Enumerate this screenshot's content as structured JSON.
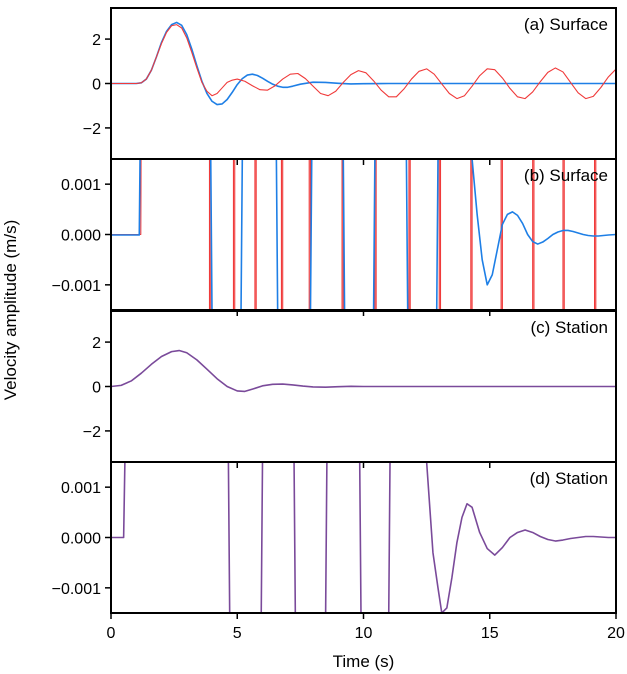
{
  "figure": {
    "xlabel": "Time (s)",
    "ylabel": "Velocity amplitude (m/s)"
  },
  "colors": {
    "blue": "#1E7FE6",
    "red": "#F03A3A",
    "purple": "#7A4A9A",
    "frame": "#000000"
  },
  "chart_data": [
    {
      "type": "line",
      "panel_label": "(a) Surface",
      "xlim": [
        0,
        20
      ],
      "ylim": [
        -3.4,
        3.4
      ],
      "xticks": [
        0,
        5,
        10,
        15,
        20
      ],
      "yticks": [
        -2,
        0,
        2
      ],
      "ytick_labels": [
        "−2",
        "0",
        "2"
      ],
      "series": [
        {
          "color": "blue",
          "x": [
            0,
            1.0,
            1.2,
            1.4,
            1.6,
            1.8,
            2.0,
            2.2,
            2.4,
            2.6,
            2.8,
            3.0,
            3.2,
            3.4,
            3.6,
            3.8,
            4.0,
            4.2,
            4.4,
            4.6,
            4.8,
            5.0,
            5.2,
            5.4,
            5.6,
            5.8,
            6.0,
            6.2,
            6.4,
            6.6,
            6.8,
            7.0,
            7.2,
            7.5,
            8.0,
            8.5,
            9.0,
            9.5,
            10,
            11,
            12,
            13,
            14,
            15,
            16,
            17,
            18,
            19,
            20
          ],
          "y": [
            0,
            0,
            0.03,
            0.2,
            0.6,
            1.2,
            1.85,
            2.35,
            2.65,
            2.75,
            2.62,
            2.2,
            1.55,
            0.8,
            0.1,
            -0.45,
            -0.8,
            -0.95,
            -0.92,
            -0.72,
            -0.4,
            -0.05,
            0.22,
            0.38,
            0.42,
            0.36,
            0.24,
            0.1,
            -0.03,
            -0.12,
            -0.17,
            -0.17,
            -0.12,
            -0.03,
            0.06,
            0.05,
            0.01,
            -0.02,
            -0.01,
            0,
            0,
            0,
            0,
            0,
            0,
            0,
            0,
            0,
            0
          ]
        },
        {
          "color": "red",
          "x": [
            0,
            1.0,
            1.2,
            1.4,
            1.6,
            1.8,
            2.0,
            2.2,
            2.4,
            2.6,
            2.8,
            3.0,
            3.2,
            3.4,
            3.6,
            3.8,
            4.0,
            4.2,
            4.4,
            4.6,
            4.8,
            5.0,
            5.3,
            5.6,
            5.9,
            6.2,
            6.5,
            6.8,
            7.1,
            7.4,
            7.7,
            8.0,
            8.3,
            8.6,
            8.9,
            9.2,
            9.5,
            9.8,
            10.1,
            10.4,
            10.7,
            11.0,
            11.3,
            11.6,
            11.9,
            12.2,
            12.5,
            12.8,
            13.1,
            13.4,
            13.7,
            14.0,
            14.3,
            14.6,
            14.9,
            15.2,
            15.5,
            15.8,
            16.1,
            16.4,
            16.7,
            17.0,
            17.3,
            17.6,
            17.9,
            18.2,
            18.5,
            18.8,
            19.1,
            19.4,
            19.7,
            20.0
          ],
          "y": [
            0,
            0,
            0.03,
            0.2,
            0.6,
            1.2,
            1.8,
            2.3,
            2.6,
            2.65,
            2.5,
            2.05,
            1.4,
            0.7,
            0.05,
            -0.35,
            -0.55,
            -0.45,
            -0.2,
            0.05,
            0.15,
            0.2,
            0.1,
            -0.1,
            -0.28,
            -0.3,
            -0.1,
            0.2,
            0.42,
            0.45,
            0.22,
            -0.12,
            -0.45,
            -0.55,
            -0.35,
            0.05,
            0.4,
            0.58,
            0.48,
            0.12,
            -0.3,
            -0.6,
            -0.6,
            -0.25,
            0.2,
            0.55,
            0.66,
            0.42,
            -0.02,
            -0.45,
            -0.68,
            -0.55,
            -0.12,
            0.35,
            0.66,
            0.62,
            0.25,
            -0.22,
            -0.6,
            -0.68,
            -0.38,
            0.08,
            0.5,
            0.7,
            0.52,
            0.05,
            -0.42,
            -0.68,
            -0.58,
            -0.18,
            0.3,
            0.65
          ]
        }
      ]
    },
    {
      "type": "line",
      "panel_label": "(b) Surface",
      "xlim": [
        0,
        20
      ],
      "ylim": [
        -0.0015,
        0.0015
      ],
      "xticks": [
        0,
        5,
        10,
        15,
        20
      ],
      "yticks": [
        -0.001,
        0,
        0.001
      ],
      "ytick_labels": [
        "−0.001",
        "0.000",
        "0.001"
      ],
      "series": [
        {
          "color": "red",
          "x": [
            0,
            1.18,
            1.19,
            1.19,
            1.2,
            1.2,
            3.9,
            3.9,
            3.95,
            3.95,
            4.85,
            4.85,
            4.9,
            4.9,
            5.7,
            5.7,
            5.75,
            5.75,
            6.75,
            6.75,
            6.8,
            6.8,
            7.85,
            7.85,
            7.9,
            7.9,
            9.15,
            9.15,
            9.2,
            9.2,
            10.45,
            10.45,
            10.5,
            10.5,
            11.8,
            11.8,
            11.85,
            11.85,
            13.0,
            13.0,
            13.05,
            13.05,
            14.25,
            14.25,
            14.3,
            14.3,
            15.45,
            15.45,
            15.5,
            15.5,
            16.7,
            16.7,
            16.75,
            16.75,
            17.9,
            17.9,
            17.95,
            17.95,
            19.15,
            19.15,
            19.2,
            19.2,
            20
          ],
          "y": [
            0,
            0,
            0.0015,
            0.0015,
            0.0015,
            0.0015,
            0.0015,
            -0.0015,
            -0.0015,
            0.0015,
            0.0015,
            -0.0015,
            -0.0015,
            0.0015,
            0.0015,
            -0.0015,
            -0.0015,
            0.0015,
            0.0015,
            -0.0015,
            -0.0015,
            0.0015,
            0.0015,
            -0.0015,
            -0.0015,
            0.0015,
            0.0015,
            -0.0015,
            -0.0015,
            0.0015,
            0.0015,
            -0.0015,
            -0.0015,
            0.0015,
            0.0015,
            -0.0015,
            -0.0015,
            0.0015,
            0.0015,
            -0.0015,
            -0.0015,
            0.0015,
            0.0015,
            -0.0015,
            -0.0015,
            0.0015,
            0.0015,
            -0.0015,
            -0.0015,
            0.0015,
            0.0015,
            -0.0015,
            -0.0015,
            0.0015,
            0.0015,
            -0.0015,
            -0.0015,
            0.0015,
            0.0015,
            -0.0015,
            -0.0015,
            0.0015,
            0.0015
          ]
        },
        {
          "color": "blue",
          "x": [
            0,
            1.12,
            1.15,
            1.17,
            3.95,
            4.0,
            4.05,
            5.15,
            5.2,
            5.25,
            6.55,
            6.6,
            6.65,
            7.9,
            7.95,
            8.0,
            9.2,
            9.25,
            9.3,
            10.4,
            10.45,
            10.5,
            11.7,
            11.75,
            11.8,
            12.9,
            12.95,
            13.0,
            13.35,
            13.6,
            13.85,
            14.1,
            14.3,
            14.5,
            14.7,
            14.9,
            15.1,
            15.3,
            15.5,
            15.7,
            15.9,
            16.1,
            16.3,
            16.5,
            16.7,
            16.9,
            17.1,
            17.3,
            17.5,
            17.7,
            17.9,
            18.1,
            18.3,
            18.5,
            18.7,
            18.9,
            19.1,
            19.3,
            19.5,
            19.7,
            20.0
          ],
          "y": [
            -1e-05,
            -1e-05,
            0.0015,
            0.0015,
            0.0015,
            -0.0015,
            -0.0015,
            -0.0015,
            0.0015,
            0.0015,
            0.0015,
            -0.0015,
            -0.0015,
            -0.0015,
            0.0015,
            0.0015,
            0.0015,
            -0.0015,
            -0.0015,
            -0.0015,
            0.0015,
            0.0015,
            0.0015,
            -0.0015,
            -0.0015,
            -0.0015,
            0.0015,
            0.0015,
            0.0015,
            0.0015,
            0.0015,
            0.0015,
            0.0015,
            0.0004,
            -0.0005,
            -0.001,
            -0.0008,
            -0.0003,
            0.0002,
            0.0004,
            0.00045,
            0.00038,
            0.00022,
            0.0,
            -0.00014,
            -0.00019,
            -0.00015,
            -8e-05,
            0.0,
            5e-05,
            8e-05,
            8e-05,
            6e-05,
            3e-05,
            0.0,
            -2e-05,
            -3e-05,
            -3e-05,
            -2e-05,
            -1e-05,
            0.0
          ]
        }
      ]
    },
    {
      "type": "line",
      "panel_label": "(c) Station",
      "xlim": [
        0,
        20
      ],
      "ylim": [
        -3.4,
        3.4
      ],
      "xticks": [
        0,
        5,
        10,
        15,
        20
      ],
      "yticks": [
        -2,
        0,
        2
      ],
      "ytick_labels": [
        "−2",
        "0",
        "2"
      ],
      "series": [
        {
          "color": "purple",
          "x": [
            0,
            0.4,
            0.8,
            1.2,
            1.6,
            2.0,
            2.4,
            2.7,
            3.0,
            3.4,
            3.8,
            4.2,
            4.6,
            5.0,
            5.3,
            5.6,
            6.0,
            6.4,
            6.8,
            7.2,
            7.6,
            8.0,
            8.5,
            9.0,
            9.5,
            10,
            12,
            14,
            16,
            18,
            20
          ],
          "y": [
            0,
            0.05,
            0.25,
            0.6,
            1.0,
            1.35,
            1.57,
            1.62,
            1.52,
            1.2,
            0.78,
            0.35,
            0.0,
            -0.2,
            -0.22,
            -0.12,
            0.03,
            0.1,
            0.11,
            0.07,
            0.02,
            -0.02,
            -0.03,
            -0.01,
            0.01,
            0,
            0,
            0,
            0,
            0,
            0
          ]
        }
      ]
    },
    {
      "type": "line",
      "panel_label": "(d) Station",
      "xlim": [
        0,
        20
      ],
      "ylim": [
        -0.0015,
        0.0015
      ],
      "xticks": [
        0,
        5,
        10,
        15,
        20
      ],
      "yticks": [
        -0.001,
        0,
        0.001
      ],
      "ytick_labels": [
        "−0.001",
        "0.000",
        "0.001"
      ],
      "series": [
        {
          "color": "purple",
          "x": [
            0,
            0.5,
            0.55,
            0.6,
            4.65,
            4.7,
            4.75,
            5.95,
            6.0,
            6.05,
            7.25,
            7.3,
            7.35,
            8.5,
            8.55,
            8.6,
            9.85,
            9.9,
            9.95,
            11.0,
            11.05,
            11.3,
            11.6,
            11.9,
            12.2,
            12.5,
            12.75,
            12.95,
            13.1,
            13.3,
            13.5,
            13.7,
            13.9,
            14.1,
            14.3,
            14.6,
            14.9,
            15.2,
            15.5,
            15.8,
            16.1,
            16.4,
            16.7,
            17.0,
            17.3,
            17.6,
            17.9,
            18.2,
            18.5,
            18.8,
            19.1,
            19.4,
            19.7,
            20.0
          ],
          "y": [
            0,
            0,
            0.0015,
            0.0015,
            0.0015,
            -0.0015,
            -0.0015,
            -0.0015,
            0.0015,
            0.0015,
            0.0015,
            -0.0015,
            -0.0015,
            -0.0015,
            0.0015,
            0.0015,
            0.0015,
            -0.0015,
            -0.0015,
            -0.0015,
            0.0015,
            0.0015,
            0.0015,
            0.0015,
            0.0015,
            0.0015,
            -0.0003,
            -0.001,
            -0.0015,
            -0.0014,
            -0.0008,
            -0.0001,
            0.0004,
            0.00067,
            0.0006,
            0.0001,
            -0.00022,
            -0.00035,
            -0.0002,
            0.0,
            0.0001,
            0.00015,
            0.0001,
            2e-05,
            -4e-05,
            -7e-05,
            -5e-05,
            -2e-05,
            0.0,
            2e-05,
            2e-05,
            1e-05,
            0.0,
            0.0
          ]
        }
      ]
    }
  ]
}
